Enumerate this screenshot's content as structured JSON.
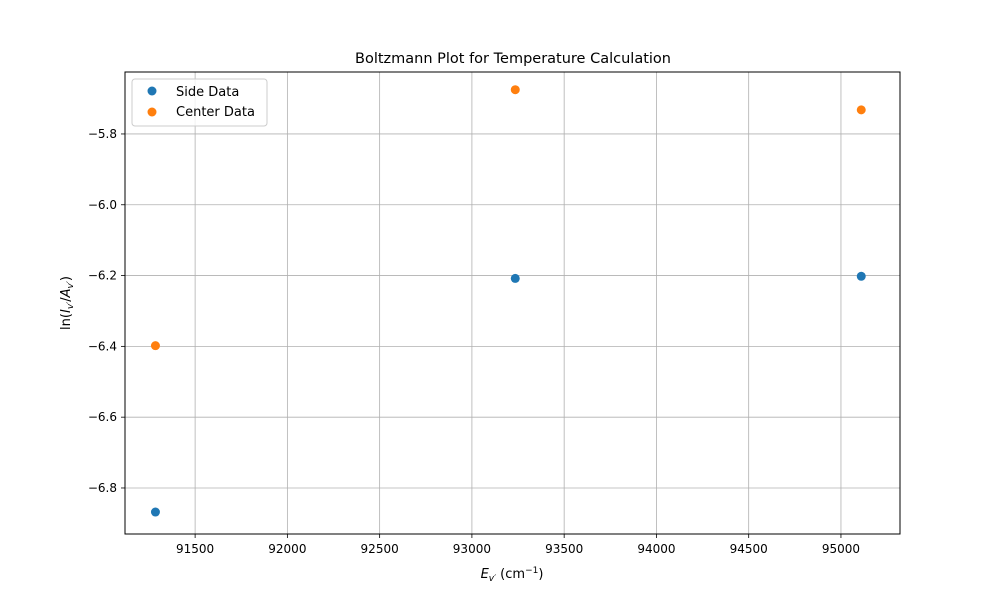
{
  "chart_data": {
    "type": "scatter",
    "title": "Boltzmann Plot for Temperature Calculation",
    "xlabel": "E_{v'} (cm^-1)",
    "ylabel": "ln(I_{v'}/A_{v'})",
    "xlabel_parts": {
      "E": "E",
      "sub": "v′",
      "unit": "(cm",
      "sup": "−1",
      "close": ")"
    },
    "ylabel_parts": {
      "pre": "ln(",
      "I": "I",
      "sub1": "v′",
      "slash": "/",
      "A": "A",
      "sub2": "v′",
      "close": ")"
    },
    "xlim": [
      91120,
      95320
    ],
    "ylim": [
      -6.93,
      -5.625
    ],
    "xticks": [
      91500,
      92000,
      92500,
      93000,
      93500,
      94000,
      94500,
      95000
    ],
    "yticks": [
      -6.8,
      -6.6,
      -6.4,
      -6.2,
      -6.0,
      -5.8
    ],
    "grid": true,
    "legend_position": "top-left",
    "series": [
      {
        "name": "Side Data",
        "color": "#1f77b4",
        "x": [
          91285,
          93235,
          95110
        ],
        "y": [
          -6.868,
          -6.208,
          -6.202
        ]
      },
      {
        "name": "Center Data",
        "color": "#ff7f0e",
        "x": [
          91285,
          93235,
          95110
        ],
        "y": [
          -6.398,
          -5.675,
          -5.732
        ]
      }
    ]
  }
}
